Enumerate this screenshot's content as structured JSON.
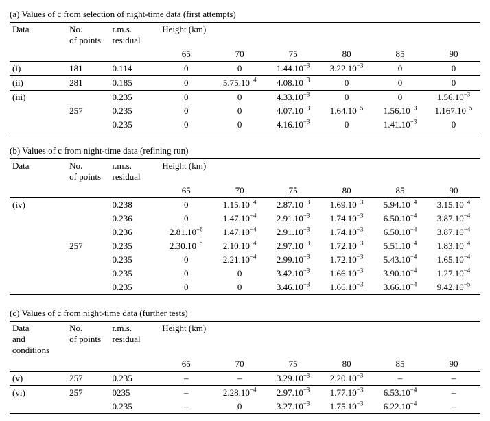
{
  "sections": {
    "a": {
      "title": "(a) Values of c from selection of night-time data (first attempts)",
      "header": {
        "data": "Data",
        "points": "No. of points",
        "rms": "r.m.s. residual",
        "height": "Height (km)",
        "heights": [
          "65",
          "70",
          "75",
          "80",
          "85",
          "90"
        ]
      },
      "rows": [
        {
          "label": "(i)",
          "pts": "181",
          "rms": "0.114",
          "c": [
            "0",
            "0",
            "1.44.10⁻³",
            "3.22.10⁻³",
            "0",
            "0"
          ]
        },
        {
          "label": "(ii)",
          "pts": "281",
          "rms": "0.185",
          "c": [
            "0",
            "5.75.10⁻⁴",
            "4.08.10⁻³",
            "0",
            "0",
            "0"
          ]
        },
        {
          "label": "(iii)",
          "pts": "",
          "rms": "0.235",
          "c": [
            "0",
            "0",
            "4.33.10⁻³",
            "0",
            "0",
            "1.56.10⁻³"
          ]
        },
        {
          "label": "",
          "pts": "257",
          "rms": "0.235",
          "c": [
            "0",
            "0",
            "4.07.10⁻³",
            "1.64.10⁻⁵",
            "1.56.10⁻³",
            "1.167.10⁻⁵"
          ]
        },
        {
          "label": "",
          "pts": "",
          "rms": "0.235",
          "c": [
            "0",
            "0",
            "4.16.10⁻³",
            "0",
            "1.41.10⁻³",
            "0"
          ]
        }
      ]
    },
    "b": {
      "title": "(b) Values of c from night-time data (refining run)",
      "header": {
        "data": "Data",
        "points": "No. of points",
        "rms": "r.m.s. residual",
        "height": "Height (km)",
        "heights": [
          "65",
          "70",
          "75",
          "80",
          "85",
          "90"
        ]
      },
      "rows": [
        {
          "label": "(iv)",
          "pts": "",
          "rms": "0.238",
          "c": [
            "0",
            "1.15.10⁻⁴",
            "2.87.10⁻³",
            "1.69.10⁻³",
            "5.94.10⁻⁴",
            "3.15.10⁻⁴"
          ]
        },
        {
          "label": "",
          "pts": "",
          "rms": "0.236",
          "c": [
            "0",
            "1.47.10⁻⁴",
            "2.91.10⁻³",
            "1.74.10⁻³",
            "6.50.10⁻⁴",
            "3.87.10⁻⁴"
          ]
        },
        {
          "label": "",
          "pts": "",
          "rms": "0.236",
          "c": [
            "2.81.10⁻⁶",
            "1.47.10⁻⁴",
            "2.91.10⁻³",
            "1.74.10⁻³",
            "6.50.10⁻⁴",
            "3.87.10⁻⁴"
          ]
        },
        {
          "label": "",
          "pts": "257",
          "rms": "0.235",
          "c": [
            "2.30.10⁻⁵",
            "2.10.10⁻⁴",
            "2.97.10⁻³",
            "1.72.10⁻³",
            "5.51.10⁻⁴",
            "1.83.10⁻⁴"
          ]
        },
        {
          "label": "",
          "pts": "",
          "rms": "0.235",
          "c": [
            "0",
            "2.21.10⁻⁴",
            "2.99.10⁻³",
            "1.72.10⁻³",
            "5.43.10⁻⁴",
            "1.65.10⁻⁴"
          ]
        },
        {
          "label": "",
          "pts": "",
          "rms": "0.235",
          "c": [
            "0",
            "0",
            "3.42.10⁻³",
            "1.66.10⁻³",
            "3.90.10⁻⁴",
            "1.27.10⁻⁴"
          ]
        },
        {
          "label": "",
          "pts": "",
          "rms": "0.235",
          "c": [
            "0",
            "0",
            "3.46.10⁻³",
            "1.66.10⁻³",
            "3.66.10⁻⁴",
            "9.42.10⁻⁵"
          ]
        }
      ]
    },
    "c": {
      "title": "(c) Values of c from night-time data (further tests)",
      "header": {
        "data": "Data and conditions",
        "points": "No. of points",
        "rms": "r.m.s. residual",
        "height": "Height (km)",
        "heights": [
          "65",
          "70",
          "75",
          "80",
          "85",
          "90"
        ]
      },
      "rows": [
        {
          "label": "(v)",
          "pts": "257",
          "rms": "0.235",
          "c": [
            "–",
            "–",
            "3.29.10⁻³",
            "2.20.10⁻³",
            "–",
            "–"
          ]
        },
        {
          "label": "(vi)",
          "pts": "257",
          "rms": "0235",
          "c": [
            "–",
            "2.28.10⁻⁴",
            "2.97.10⁻³",
            "1.77.10⁻³",
            "6.53.10⁻⁴",
            "–"
          ]
        },
        {
          "label": "",
          "pts": "",
          "rms": "0.235",
          "c": [
            "–",
            "0",
            "3.27.10⁻³",
            "1.75.10⁻³",
            "6.22.10⁻⁴",
            "–"
          ]
        }
      ]
    }
  }
}
